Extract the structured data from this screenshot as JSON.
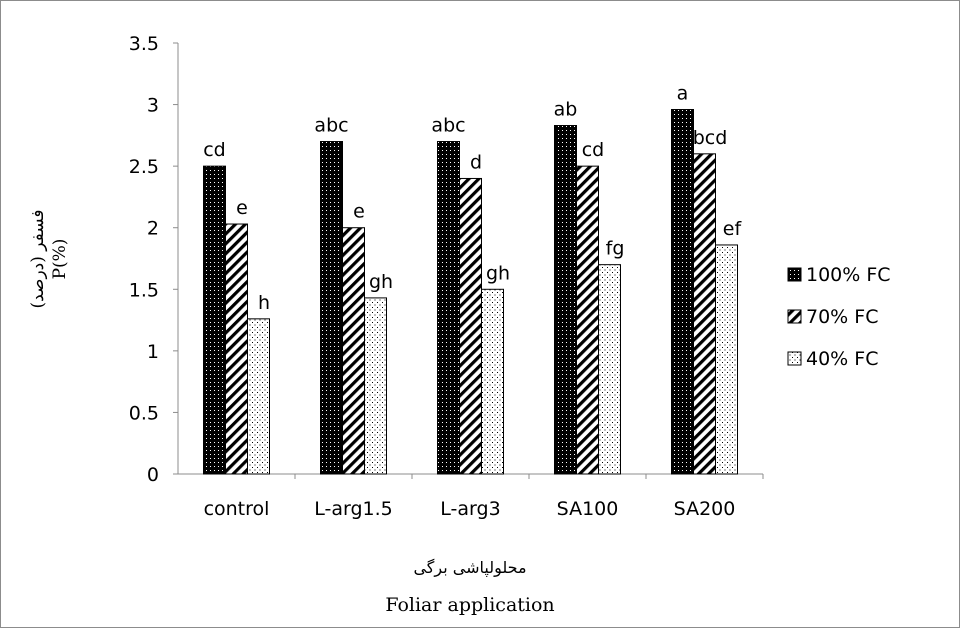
{
  "chart_data": {
    "type": "bar",
    "categories": [
      "control",
      "L-arg1.5",
      "L-arg3",
      "SA100",
      "SA200"
    ],
    "series": [
      {
        "name": "100% FC",
        "values": [
          2.5,
          2.7,
          2.7,
          2.83,
          2.96
        ],
        "letters": [
          "cd",
          "abc",
          "abc",
          "ab",
          "a"
        ],
        "pattern": "dots-dark"
      },
      {
        "name": "70% FC",
        "values": [
          2.03,
          2.0,
          2.4,
          2.5,
          2.6
        ],
        "letters": [
          "e",
          "e",
          "d",
          "cd",
          "bcd"
        ],
        "pattern": "diagonal"
      },
      {
        "name": "40% FC",
        "values": [
          1.26,
          1.43,
          1.5,
          1.7,
          1.86
        ],
        "letters": [
          "h",
          "gh",
          "gh",
          "fg",
          "ef"
        ],
        "pattern": "dots-light"
      }
    ],
    "ylim": [
      0,
      3.5
    ],
    "yticks": [
      "0",
      "0.5",
      "1",
      "1.5",
      "2",
      "2.5",
      "3",
      "3.5"
    ],
    "ylabel_fa": "فسفر (درصد)",
    "ylabel": "P(%)",
    "xlabel_fa": "محلولپاشی برگی",
    "xlabel": "Foliar application",
    "legend_position": "right",
    "grid": false
  }
}
